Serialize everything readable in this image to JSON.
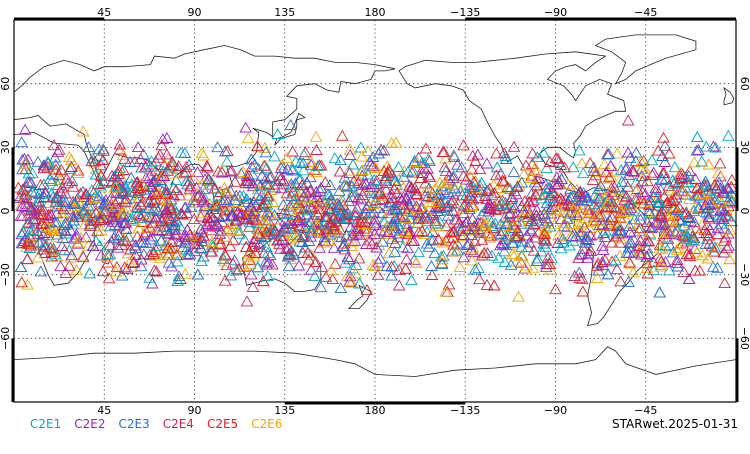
{
  "map": {
    "top_lon_labels": [
      "45",
      "90",
      "135",
      "180",
      "−135",
      "−90",
      "−45"
    ],
    "bottom_lon_labels": [
      "45",
      "90",
      "135",
      "180",
      "−135",
      "−90",
      "−45"
    ],
    "lat_labels": [
      "60",
      "30",
      "0",
      "−30",
      "−60"
    ],
    "lon_min": 0,
    "lon_max": 360,
    "lat_min": -90,
    "lat_max": 90,
    "grid_lines": true,
    "grid_style": "dotted",
    "coastlines": true
  },
  "legend": {
    "entries": [
      {
        "label": "C2E1",
        "color": "#00a8c8"
      },
      {
        "label": "C2E2",
        "color": "#9a1fc8"
      },
      {
        "label": "C2E3",
        "color": "#1e6fd8"
      },
      {
        "label": "C2E4",
        "color": "#d0204a"
      },
      {
        "label": "C2E5",
        "color": "#e02020"
      },
      {
        "label": "C2E6",
        "color": "#f0a800"
      }
    ]
  },
  "observations": {
    "marker": "triangle",
    "latitude_band": [
      -45,
      45
    ],
    "density": "dense"
  },
  "caption": "STARwet.2025-01-31"
}
